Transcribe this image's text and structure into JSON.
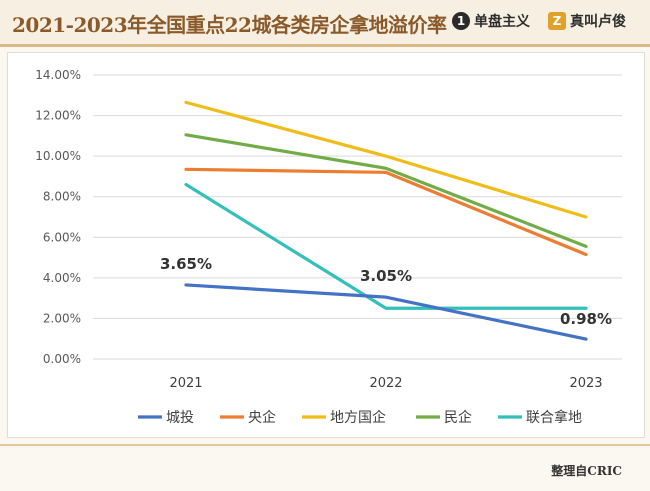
{
  "header": {
    "title": "2021-2023年全国重点22城各类房企拿地溢价率",
    "brand1": {
      "logo": "1",
      "name": "单盘主义"
    },
    "brand2": {
      "logo": "Z",
      "name": "真叫卢俊"
    }
  },
  "footer": {
    "credit": "整理自CRIC"
  },
  "chart_data": {
    "type": "line",
    "title": "2021-2023年全国重点22城各类房企拿地溢价率",
    "categories": [
      "2021",
      "2022",
      "2023"
    ],
    "ylim": [
      0,
      14
    ],
    "yticks": [
      0,
      2,
      4,
      6,
      8,
      10,
      12,
      14
    ],
    "ytick_labels": [
      "0.00%",
      "2.00%",
      "4.00%",
      "6.00%",
      "8.00%",
      "10.00%",
      "12.00%",
      "14.00%"
    ],
    "grid": true,
    "legend_position": "bottom",
    "series": [
      {
        "name": "城投",
        "color": "#4472c4",
        "values": [
          3.65,
          3.05,
          0.98
        ]
      },
      {
        "name": "央企",
        "color": "#ed7d31",
        "values": [
          9.35,
          9.2,
          5.15
        ]
      },
      {
        "name": "地方国企",
        "color": "#f0bc1a",
        "values": [
          12.65,
          10.0,
          7.0
        ]
      },
      {
        "name": "民企",
        "color": "#70ad47",
        "values": [
          11.05,
          9.4,
          5.55
        ]
      },
      {
        "name": "联合拿地",
        "color": "#33bfba",
        "values": [
          8.6,
          2.5,
          2.5
        ]
      }
    ],
    "data_labels": [
      {
        "series": "城投",
        "index": 0,
        "text": "3.65%"
      },
      {
        "series": "城投",
        "index": 1,
        "text": "3.05%"
      },
      {
        "series": "城投",
        "index": 2,
        "text": "0.98%"
      }
    ]
  }
}
